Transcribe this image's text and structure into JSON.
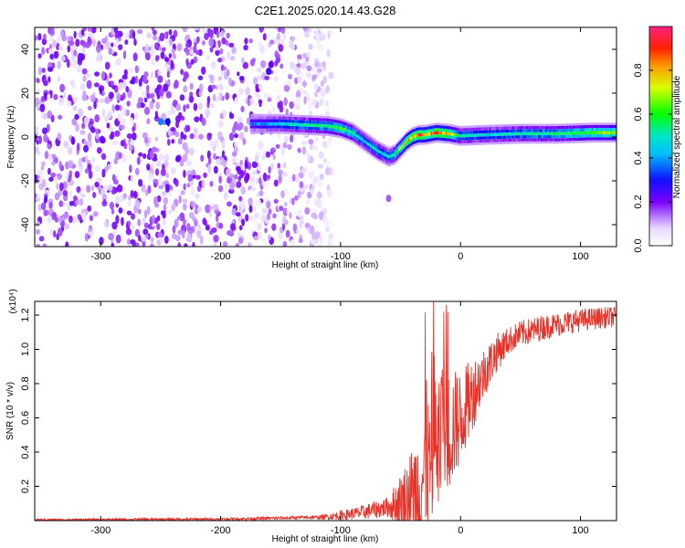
{
  "title": "C2E1.2025.020.14.43.G28",
  "chart_data": [
    {
      "type": "heatmap",
      "xlabel": "Height of straight line (km)",
      "ylabel": "Frequency (Hz)",
      "xlim": [
        -355,
        130
      ],
      "ylim": [
        -50,
        50
      ],
      "xticks": [
        -300,
        -200,
        -100,
        0,
        100
      ],
      "yticks": [
        -40,
        -20,
        0,
        20,
        40
      ],
      "colorbar": {
        "label": "Normalized spectral amplitude",
        "range": [
          0,
          1
        ],
        "ticks": [
          "0.0",
          "0.2",
          "0.4",
          "0.6",
          "0.8"
        ],
        "tick_values": [
          0.0,
          0.2,
          0.4,
          0.6,
          0.8
        ],
        "colormap": "white-violet-blue-cyan-green-yellow-red-magenta"
      },
      "ridge": {
        "x": [
          -175,
          -150,
          -130,
          -110,
          -100,
          -90,
          -80,
          -70,
          -60,
          -55,
          -50,
          -45,
          -40,
          -35,
          -30,
          -20,
          -10,
          0,
          20,
          50,
          80,
          110,
          130
        ],
        "y": [
          6,
          6,
          5.5,
          5,
          4,
          2,
          -2,
          -6,
          -9,
          -8,
          -5,
          -2,
          0,
          1,
          1,
          2,
          1.5,
          0.5,
          1,
          1.5,
          1.5,
          2,
          2
        ],
        "amplitude": [
          0.35,
          0.45,
          0.5,
          0.55,
          0.6,
          0.55,
          0.45,
          0.5,
          0.45,
          0.55,
          0.65,
          0.75,
          0.8,
          0.85,
          0.8,
          0.85,
          0.75,
          0.5,
          0.45,
          0.5,
          0.55,
          0.65,
          0.7
        ]
      },
      "noise_region_x": [
        -355,
        -115
      ]
    },
    {
      "type": "line",
      "xlabel": "Height of straight line (km)",
      "ylabel": "SNR (10 * v/v)",
      "y_multiplier": "(x10⁴)",
      "xlim": [
        -355,
        130
      ],
      "ylim": [
        0,
        1.28
      ],
      "xticks": [
        -300,
        -200,
        -100,
        0,
        100
      ],
      "yticks": [
        0.2,
        0.4,
        0.6,
        0.8,
        1.0,
        1.2
      ],
      "ytick_labels": [
        "0.2",
        "0.4",
        "0.6",
        "0.8",
        "1.0",
        "1.2"
      ],
      "color": "#e8332a",
      "envelope": {
        "x": [
          -355,
          -200,
          -150,
          -115,
          -100,
          -80,
          -60,
          -45,
          -35,
          -28,
          -20,
          -10,
          0,
          10,
          20,
          30,
          40,
          50,
          70,
          90,
          110,
          130
        ],
        "y": [
          0.005,
          0.008,
          0.015,
          0.02,
          0.03,
          0.05,
          0.08,
          0.12,
          0.2,
          0.3,
          0.42,
          0.52,
          0.6,
          0.74,
          0.87,
          0.98,
          1.05,
          1.09,
          1.13,
          1.16,
          1.18,
          1.19
        ]
      },
      "noise_amplitude": {
        "x": [
          -355,
          -120,
          -60,
          -35,
          -20,
          0,
          20,
          40,
          130
        ],
        "y": [
          0.005,
          0.01,
          0.06,
          0.35,
          0.45,
          0.28,
          0.15,
          0.08,
          0.06
        ]
      }
    }
  ]
}
